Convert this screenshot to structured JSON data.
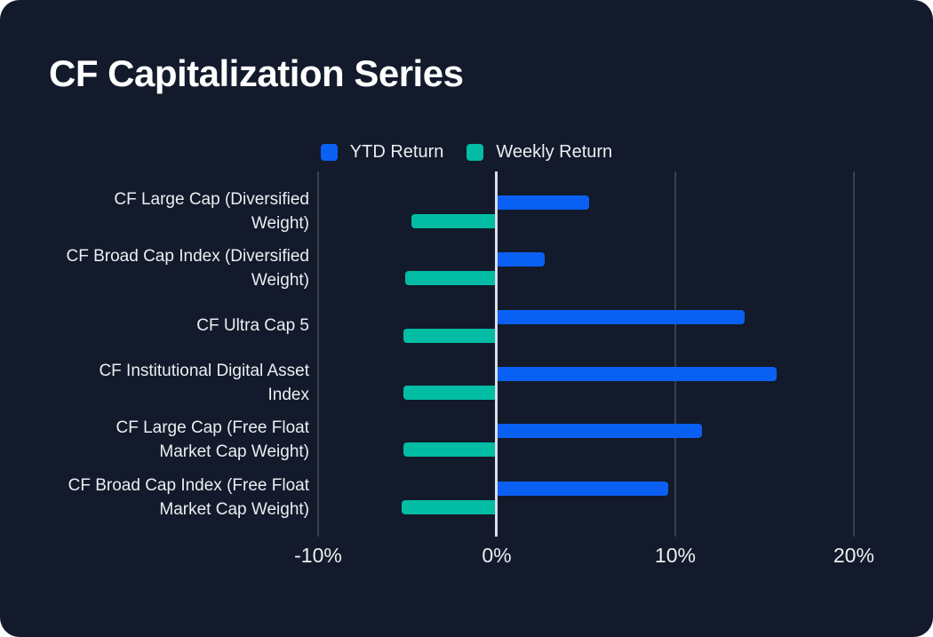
{
  "title": "CF Capitalization Series",
  "chart_data": {
    "type": "bar",
    "orientation": "horizontal",
    "title": "CF Capitalization Series",
    "categories": [
      "CF Large Cap (Diversified Weight)",
      "CF Broad Cap Index (Diversified Weight)",
      "CF Ultra Cap 5",
      "CF Institutional Digital Asset Index",
      "CF Large Cap (Free Float Market Cap Weight)",
      "CF Broad Cap Index (Free Float Market Cap Weight)"
    ],
    "series": [
      {
        "name": "YTD Return",
        "color": "#0B60F4",
        "values": [
          5.2,
          2.7,
          13.9,
          15.7,
          11.5,
          9.6
        ]
      },
      {
        "name": "Weekly Return",
        "color": "#02BCA4",
        "values": [
          -4.8,
          -5.1,
          -5.2,
          -5.2,
          -5.2,
          -5.3
        ]
      }
    ],
    "x_tick_labels": [
      "-10%",
      "0%",
      "10%",
      "20%"
    ],
    "x_tick_values": [
      -10,
      0,
      10,
      20
    ],
    "xlim": [
      -10,
      21
    ],
    "legend_position": "top-center",
    "grid": "vertical",
    "zero_line": true
  },
  "colors": {
    "card_background": "#121A2B",
    "gridline": "#39414F",
    "zero_line": "#DBDEE3",
    "text": "#ECEEF1",
    "title_text": "#FFFFFF",
    "ytd_blue": "#0B60F4",
    "weekly_teal": "#02BCA4"
  }
}
